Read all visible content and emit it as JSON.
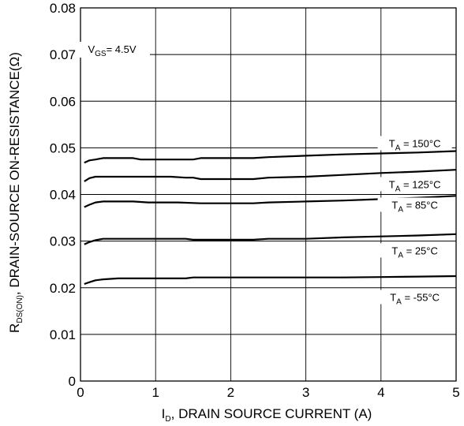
{
  "chart_data": {
    "type": "line",
    "xlabel": {
      "main": "I",
      "sub": "D",
      "rest": ", DRAIN SOURCE CURRENT (A)"
    },
    "ylabel": {
      "main": "R",
      "sub": "DS(ON)",
      "rest": ", DRAIN-SOURCE ON-RESISTANCE(Ω)"
    },
    "xlim": [
      0,
      5
    ],
    "ylim": [
      0,
      0.08
    ],
    "x_ticks": [
      0,
      1,
      2,
      3,
      4,
      5
    ],
    "x_tick_labels": [
      "0",
      "1",
      "2",
      "3",
      "4",
      "5"
    ],
    "y_ticks": [
      0,
      0.01,
      0.02,
      0.03,
      0.04,
      0.05,
      0.06,
      0.07,
      0.08
    ],
    "y_tick_labels": [
      "0",
      "0.01",
      "0.02",
      "0.03",
      "0.04",
      "0.05",
      "0.06",
      "0.07",
      "0.08"
    ],
    "grid": true,
    "annotation": {
      "main": "V",
      "sub": "GS",
      "rest": "= 4.5V",
      "x": 0.42,
      "y": 0.0707
    },
    "series": [
      {
        "name": "T_A = 150°C",
        "label": {
          "main": "T",
          "sub": "A",
          "rest": " = 150°C"
        },
        "label_at": {
          "x": 4.45,
          "y": 0.0505
        },
        "x": [
          0.05,
          0.12,
          0.2,
          0.3,
          0.5,
          0.7,
          0.8,
          1.0,
          1.2,
          1.4,
          1.5,
          1.6,
          2.0,
          2.3,
          2.5,
          3.0,
          3.5,
          4.0,
          4.5,
          5.0
        ],
        "y": [
          0.0468,
          0.0473,
          0.0475,
          0.0478,
          0.0478,
          0.0478,
          0.0475,
          0.0475,
          0.0475,
          0.0475,
          0.0475,
          0.0478,
          0.0478,
          0.0478,
          0.048,
          0.0483,
          0.0486,
          0.0488,
          0.049,
          0.0493
        ]
      },
      {
        "name": "T_A = 125°C",
        "label": {
          "main": "T",
          "sub": "A",
          "rest": " = 125°C"
        },
        "label_at": {
          "x": 4.45,
          "y": 0.0417
        },
        "x": [
          0.05,
          0.12,
          0.2,
          0.3,
          0.5,
          1.0,
          1.2,
          1.4,
          1.5,
          1.6,
          2.0,
          2.3,
          2.5,
          3.0,
          3.5,
          4.0,
          4.5,
          5.0
        ],
        "y": [
          0.0428,
          0.0435,
          0.0438,
          0.0438,
          0.0438,
          0.0438,
          0.0438,
          0.0436,
          0.0436,
          0.0433,
          0.0433,
          0.0433,
          0.0436,
          0.0438,
          0.0442,
          0.0446,
          0.0449,
          0.0453
        ]
      },
      {
        "name": "T_A = 85°C",
        "label": {
          "main": "T",
          "sub": "A",
          "rest": " = 85°C"
        },
        "label_at": {
          "x": 4.45,
          "y": 0.0373
        },
        "x": [
          0.05,
          0.12,
          0.2,
          0.3,
          0.5,
          0.7,
          0.9,
          1.1,
          1.3,
          1.6,
          2.0,
          2.3,
          2.5,
          3.0,
          3.5,
          4.0,
          4.5,
          5.0
        ],
        "y": [
          0.0373,
          0.0378,
          0.0383,
          0.0385,
          0.0385,
          0.0385,
          0.0383,
          0.0383,
          0.0383,
          0.0381,
          0.0381,
          0.0381,
          0.0383,
          0.0385,
          0.0387,
          0.039,
          0.0393,
          0.0397
        ]
      },
      {
        "name": "T_A = 25°C",
        "label": {
          "main": "T",
          "sub": "A",
          "rest": " = 25°C"
        },
        "label_at": {
          "x": 4.45,
          "y": 0.0275
        },
        "x": [
          0.05,
          0.12,
          0.2,
          0.3,
          0.5,
          1.0,
          1.4,
          1.5,
          2.0,
          2.3,
          2.5,
          3.0,
          3.5,
          4.0,
          4.5,
          5.0
        ],
        "y": [
          0.0293,
          0.0298,
          0.0302,
          0.0305,
          0.0305,
          0.0305,
          0.0305,
          0.0303,
          0.0303,
          0.0303,
          0.0305,
          0.0305,
          0.0308,
          0.031,
          0.0312,
          0.0315
        ]
      },
      {
        "name": "T_A = -55°C",
        "label": {
          "main": "T",
          "sub": "A",
          "rest": " = -55°C"
        },
        "label_at": {
          "x": 4.45,
          "y": 0.0175
        },
        "x": [
          0.05,
          0.12,
          0.2,
          0.3,
          0.5,
          1.0,
          1.4,
          1.5,
          2.0,
          2.5,
          3.0,
          3.5,
          4.0,
          4.5,
          5.0
        ],
        "y": [
          0.0208,
          0.0212,
          0.0216,
          0.0218,
          0.022,
          0.022,
          0.022,
          0.0222,
          0.0222,
          0.0222,
          0.0222,
          0.0222,
          0.0223,
          0.0224,
          0.0225
        ]
      }
    ]
  }
}
